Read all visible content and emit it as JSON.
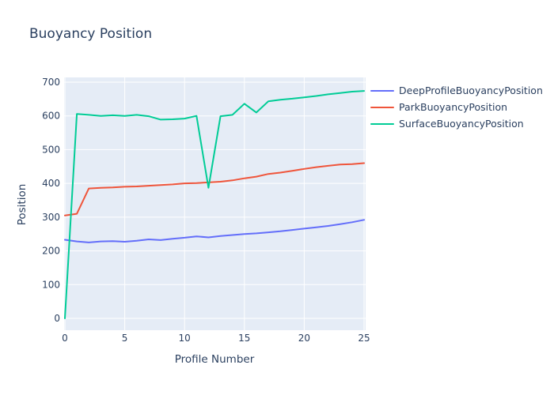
{
  "title": "Buoyancy Position",
  "colors": {
    "text": "#2a3f5f",
    "plot_background": "#e5ecf6",
    "grid": "#ffffff",
    "series_blue": "#636efa",
    "series_red": "#ef553b",
    "series_green": "#00cc96"
  },
  "chart_data": {
    "type": "line",
    "title": "Buoyancy Position",
    "xlabel": "Profile Number",
    "ylabel": "Position",
    "xlim": [
      0,
      25
    ],
    "ylim": [
      0,
      700
    ],
    "xticks": [
      0,
      5,
      10,
      15,
      20,
      25
    ],
    "yticks": [
      0,
      100,
      200,
      300,
      400,
      500,
      600,
      700
    ],
    "grid": true,
    "legend_position": "right",
    "x": [
      0,
      1,
      2,
      3,
      4,
      5,
      6,
      7,
      8,
      9,
      10,
      11,
      12,
      13,
      14,
      15,
      16,
      17,
      18,
      19,
      20,
      21,
      22,
      23,
      24,
      25
    ],
    "series": [
      {
        "name": "DeepProfileBuoyancyPosition",
        "color": "#636efa",
        "values": [
          233,
          228,
          225,
          228,
          229,
          227,
          230,
          234,
          232,
          236,
          239,
          243,
          240,
          244,
          247,
          250,
          252,
          255,
          258,
          262,
          266,
          270,
          274,
          279,
          285,
          292
        ]
      },
      {
        "name": "ParkBuoyancyPosition",
        "color": "#ef553b",
        "values": [
          305,
          310,
          385,
          387,
          388,
          390,
          391,
          393,
          395,
          397,
          400,
          401,
          403,
          405,
          409,
          415,
          420,
          428,
          432,
          437,
          443,
          448,
          452,
          456,
          457,
          460
        ]
      },
      {
        "name": "SurfaceBuoyancyPosition",
        "color": "#00cc96",
        "values": [
          0,
          606,
          603,
          600,
          602,
          600,
          603,
          599,
          589,
          590,
          592,
          600,
          387,
          599,
          603,
          636,
          610,
          643,
          648,
          651,
          655,
          659,
          664,
          668,
          672,
          674
        ]
      }
    ]
  }
}
